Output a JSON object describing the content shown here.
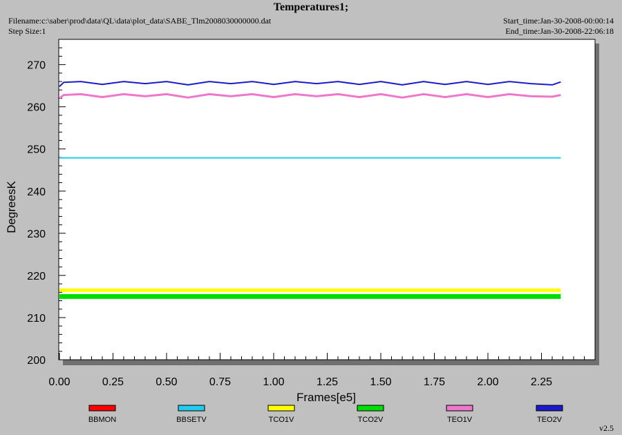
{
  "header": {
    "title": "Temperatures1;",
    "filename": "Filename:c:\\saber\\prod\\data\\QL\\data\\plot_data\\SABE_Tlm2008030000000.dat",
    "step_size": "Step Size:1",
    "start_time": "Start_time:Jan-30-2008-00:00:14",
    "end_time": "End_time:Jan-30-2008-22:06:18",
    "version": "v2.5"
  },
  "chart_data": {
    "type": "line",
    "title": "Temperatures1;",
    "xlabel": "Frames[e5]",
    "ylabel": "DegreesK",
    "xlim": [
      0,
      2.5
    ],
    "ylim": [
      200,
      276
    ],
    "xticks": [
      0,
      0.25,
      0.5,
      0.75,
      1.0,
      1.25,
      1.5,
      1.75,
      2.0,
      2.25
    ],
    "xtick_labels": [
      "0.00",
      "0.25",
      "0.50",
      "0.75",
      "1.00",
      "1.25",
      "1.50",
      "1.75",
      "2.00",
      "2.25"
    ],
    "yticks": [
      200,
      210,
      220,
      230,
      240,
      250,
      260,
      270
    ],
    "ytick_labels": [
      "200",
      "210",
      "220",
      "230",
      "240",
      "250",
      "260",
      "270"
    ],
    "grid": false,
    "legend_placement": "bottom",
    "series": [
      {
        "name": "BBMON",
        "color": "#ff0000",
        "values": []
      },
      {
        "name": "BBSETV",
        "color": "#22ccee",
        "x": [
          0,
          2.34
        ],
        "values": [
          247.9,
          247.9
        ]
      },
      {
        "name": "TCO1V",
        "color": "#ffff00",
        "x": [
          0,
          0.25,
          0.5,
          0.75,
          1.0,
          1.25,
          1.5,
          1.75,
          2.0,
          2.25,
          2.34
        ],
        "values": [
          216.5,
          216.5,
          216.5,
          216.5,
          216.5,
          216.5,
          216.5,
          216.5,
          216.5,
          216.5,
          216.5
        ]
      },
      {
        "name": "TCO2V",
        "color": "#00dd00",
        "x": [
          0,
          0.25,
          0.5,
          0.75,
          1.0,
          1.25,
          1.5,
          1.75,
          2.0,
          2.25,
          2.34
        ],
        "values": [
          215.0,
          215.0,
          215.0,
          215.0,
          215.0,
          215.0,
          215.0,
          215.0,
          215.0,
          215.0,
          215.0
        ]
      },
      {
        "name": "TEO1V",
        "color": "#ee77cc",
        "x": [
          0,
          0.02,
          0.1,
          0.2,
          0.3,
          0.4,
          0.5,
          0.6,
          0.7,
          0.8,
          0.9,
          1.0,
          1.1,
          1.2,
          1.3,
          1.4,
          1.5,
          1.6,
          1.7,
          1.8,
          1.9,
          2.0,
          2.1,
          2.2,
          2.3,
          2.34
        ],
        "values": [
          262.0,
          262.8,
          263.0,
          262.3,
          263.0,
          262.5,
          263.0,
          262.2,
          263.0,
          262.5,
          263.0,
          262.3,
          263.0,
          262.5,
          263.0,
          262.3,
          263.0,
          262.2,
          263.0,
          262.3,
          263.0,
          262.3,
          263.0,
          262.5,
          262.4,
          262.8
        ]
      },
      {
        "name": "TEO2V",
        "color": "#1a1acc",
        "x": [
          0,
          0.02,
          0.1,
          0.2,
          0.3,
          0.4,
          0.5,
          0.6,
          0.7,
          0.8,
          0.9,
          1.0,
          1.1,
          1.2,
          1.3,
          1.4,
          1.5,
          1.6,
          1.7,
          1.8,
          1.9,
          2.0,
          2.1,
          2.2,
          2.3,
          2.34
        ],
        "values": [
          264.8,
          265.8,
          266.0,
          265.3,
          266.0,
          265.5,
          266.0,
          265.2,
          266.0,
          265.5,
          266.0,
          265.3,
          266.0,
          265.5,
          266.0,
          265.3,
          266.0,
          265.2,
          266.0,
          265.3,
          266.0,
          265.3,
          266.0,
          265.5,
          265.2,
          265.9
        ]
      }
    ]
  }
}
